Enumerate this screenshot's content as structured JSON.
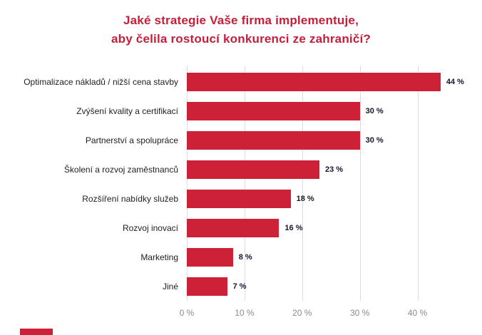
{
  "title": {
    "line1": "Jaké strategie Vaše firma implementuje,",
    "line2": "aby čelila rostoucí konkurenci ze zahraničí?",
    "color": "#C41E3A"
  },
  "chart_data": {
    "type": "bar",
    "orientation": "horizontal",
    "title": "Jaké strategie Vaše firma implementuje, aby čelila rostoucí konkurenci ze zahraničí?",
    "categories": [
      "Optimalizace nákladů / nižší cena stavby",
      "Zvýšení kvality a certifikací",
      "Partnerství a spolupráce",
      "Školení a rozvoj zaměstnanců",
      "Rozšíření nabídky služeb",
      "Rozvoj inovací",
      "Marketing",
      "Jiné"
    ],
    "values": [
      44,
      30,
      30,
      23,
      18,
      16,
      8,
      7
    ],
    "value_labels": [
      "44 %",
      "30 %",
      "30 %",
      "23 %",
      "18 %",
      "16 %",
      "8 %",
      "7 %"
    ],
    "x_ticks": [
      0,
      10,
      20,
      30,
      40
    ],
    "x_tick_labels": [
      "0 %",
      "10 %",
      "20 %",
      "30 %",
      "40 %"
    ],
    "xlim": [
      0,
      45.5
    ],
    "bar_color": "#CC2136",
    "grid": true,
    "legend_position": "none"
  }
}
